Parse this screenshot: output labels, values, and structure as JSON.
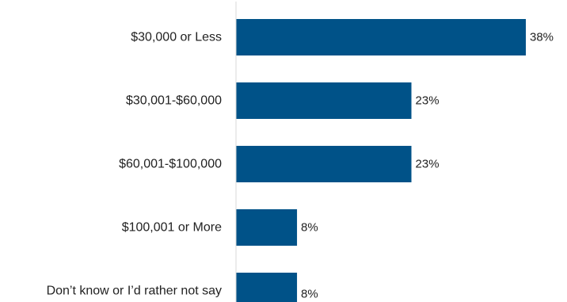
{
  "chart_data": {
    "type": "bar",
    "orientation": "horizontal",
    "categories": [
      "$30,000 or Less",
      "$30,001-$60,000",
      "$60,001-$100,000",
      "$100,001 or More",
      "Don’t know or I’d rather not say"
    ],
    "values": [
      38,
      23,
      23,
      8,
      8
    ],
    "value_labels": [
      "38%",
      "23%",
      "23%",
      "8%",
      "8%"
    ],
    "unit": "%",
    "xlim": [
      0,
      40
    ],
    "grid": false,
    "bar_color": "#005288",
    "axis_color": "#d9d9d9"
  }
}
